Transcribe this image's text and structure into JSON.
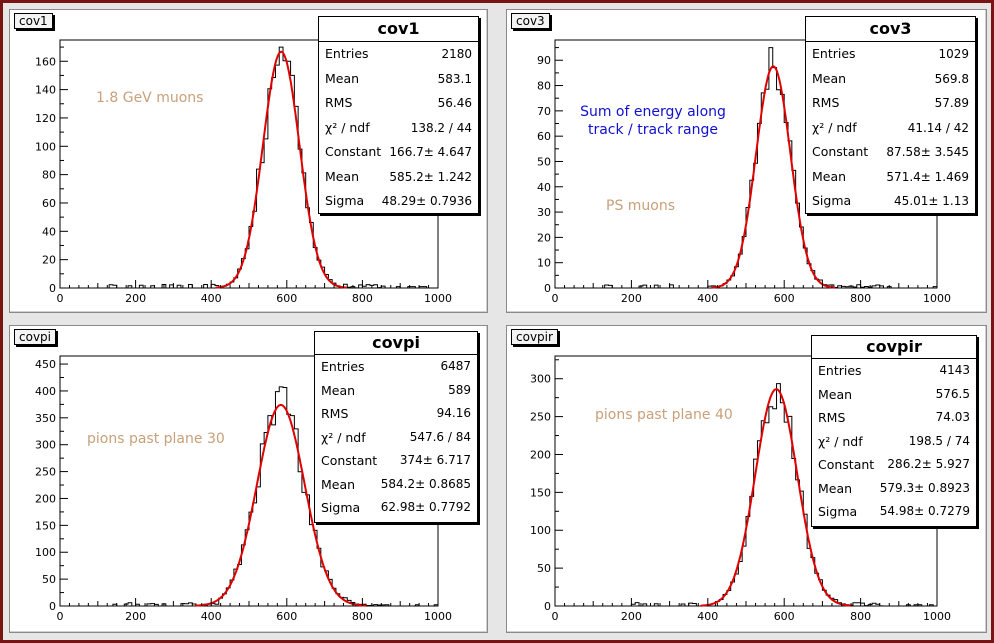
{
  "colors": {
    "fit": "#e00000",
    "hist": "#000000",
    "annot_tan": "#c8a07a",
    "annot_blue": "#1010d0"
  },
  "chart_data": [
    {
      "type": "histogram",
      "pad_title": "cov1",
      "xlim": [
        0,
        1000
      ],
      "ylim": [
        0,
        175
      ],
      "xticks": [
        0,
        200,
        400,
        600,
        800,
        1000
      ],
      "yticks": [
        0,
        20,
        40,
        60,
        80,
        100,
        120,
        140,
        160
      ],
      "fit": {
        "function": "gaus",
        "constant": 166.7,
        "mean": 585.2,
        "sigma": 48.29
      },
      "stats": {
        "title": "cov1",
        "rows": [
          {
            "label": "Entries",
            "value": "2180"
          },
          {
            "label": "Mean",
            "value": "583.1"
          },
          {
            "label": "RMS",
            "value": "56.46"
          },
          {
            "label": "χ² / ndf",
            "value": "138.2 / 44"
          },
          {
            "label": "Constant",
            "value": "166.7± 4.647"
          },
          {
            "label": "Mean",
            "value": "585.2± 1.242"
          },
          {
            "label": "Sigma",
            "value": "48.29± 0.7936"
          }
        ]
      },
      "annotations": [
        {
          "text": "1.8 GeV muons",
          "color": "tan"
        }
      ]
    },
    {
      "type": "histogram",
      "pad_title": "cov3",
      "xlim": [
        0,
        1000
      ],
      "ylim": [
        0,
        98
      ],
      "xticks": [
        0,
        200,
        400,
        600,
        800,
        1000
      ],
      "yticks": [
        0,
        10,
        20,
        30,
        40,
        50,
        60,
        70,
        80,
        90
      ],
      "fit": {
        "function": "gaus",
        "constant": 87.58,
        "mean": 571.4,
        "sigma": 45.01
      },
      "stats": {
        "title": "cov3",
        "rows": [
          {
            "label": "Entries",
            "value": "1029"
          },
          {
            "label": "Mean",
            "value": "569.8"
          },
          {
            "label": "RMS",
            "value": "57.89"
          },
          {
            "label": "χ² / ndf",
            "value": "41.14 / 42"
          },
          {
            "label": "Constant",
            "value": "87.58± 3.545"
          },
          {
            "label": "Mean",
            "value": "571.4± 1.469"
          },
          {
            "label": "Sigma",
            "value": "45.01± 1.13"
          }
        ]
      },
      "annotations": [
        {
          "text": "Sum of energy along",
          "color": "blue"
        },
        {
          "text": "track / track range",
          "color": "blue"
        },
        {
          "text": "PS muons",
          "color": "tan"
        }
      ]
    },
    {
      "type": "histogram",
      "pad_title": "covpi",
      "xlim": [
        0,
        1000
      ],
      "ylim": [
        0,
        465
      ],
      "xticks": [
        0,
        200,
        400,
        600,
        800,
        1000
      ],
      "yticks": [
        0,
        50,
        100,
        150,
        200,
        250,
        300,
        350,
        400,
        450
      ],
      "fit": {
        "function": "gaus",
        "constant": 374,
        "mean": 584.2,
        "sigma": 62.98
      },
      "stats": {
        "title": "covpi",
        "rows": [
          {
            "label": "Entries",
            "value": "6487"
          },
          {
            "label": "Mean",
            "value": "589"
          },
          {
            "label": "RMS",
            "value": "94.16"
          },
          {
            "label": "χ² / ndf",
            "value": "547.6 / 84"
          },
          {
            "label": "Constant",
            "value": "374± 6.717"
          },
          {
            "label": "Mean",
            "value": "584.2± 0.8685"
          },
          {
            "label": "Sigma",
            "value": "62.98± 0.7792"
          }
        ]
      },
      "annotations": [
        {
          "text": "pions past plane 30",
          "color": "tan"
        }
      ]
    },
    {
      "type": "histogram",
      "pad_title": "covpir",
      "xlim": [
        0,
        1000
      ],
      "ylim": [
        0,
        330
      ],
      "xticks": [
        0,
        200,
        400,
        600,
        800,
        1000
      ],
      "yticks": [
        0,
        50,
        100,
        150,
        200,
        250,
        300
      ],
      "fit": {
        "function": "gaus",
        "constant": 286.2,
        "mean": 579.3,
        "sigma": 54.98
      },
      "stats": {
        "title": "covpir",
        "rows": [
          {
            "label": "Entries",
            "value": "4143"
          },
          {
            "label": "Mean",
            "value": "576.5"
          },
          {
            "label": "RMS",
            "value": "74.03"
          },
          {
            "label": "χ² / ndf",
            "value": "198.5 / 74"
          },
          {
            "label": "Constant",
            "value": "286.2± 5.927"
          },
          {
            "label": "Mean",
            "value": "579.3± 0.8923"
          },
          {
            "label": "Sigma",
            "value": "54.98± 0.7279"
          }
        ]
      },
      "annotations": [
        {
          "text": "pions past plane 40",
          "color": "tan"
        }
      ]
    }
  ]
}
